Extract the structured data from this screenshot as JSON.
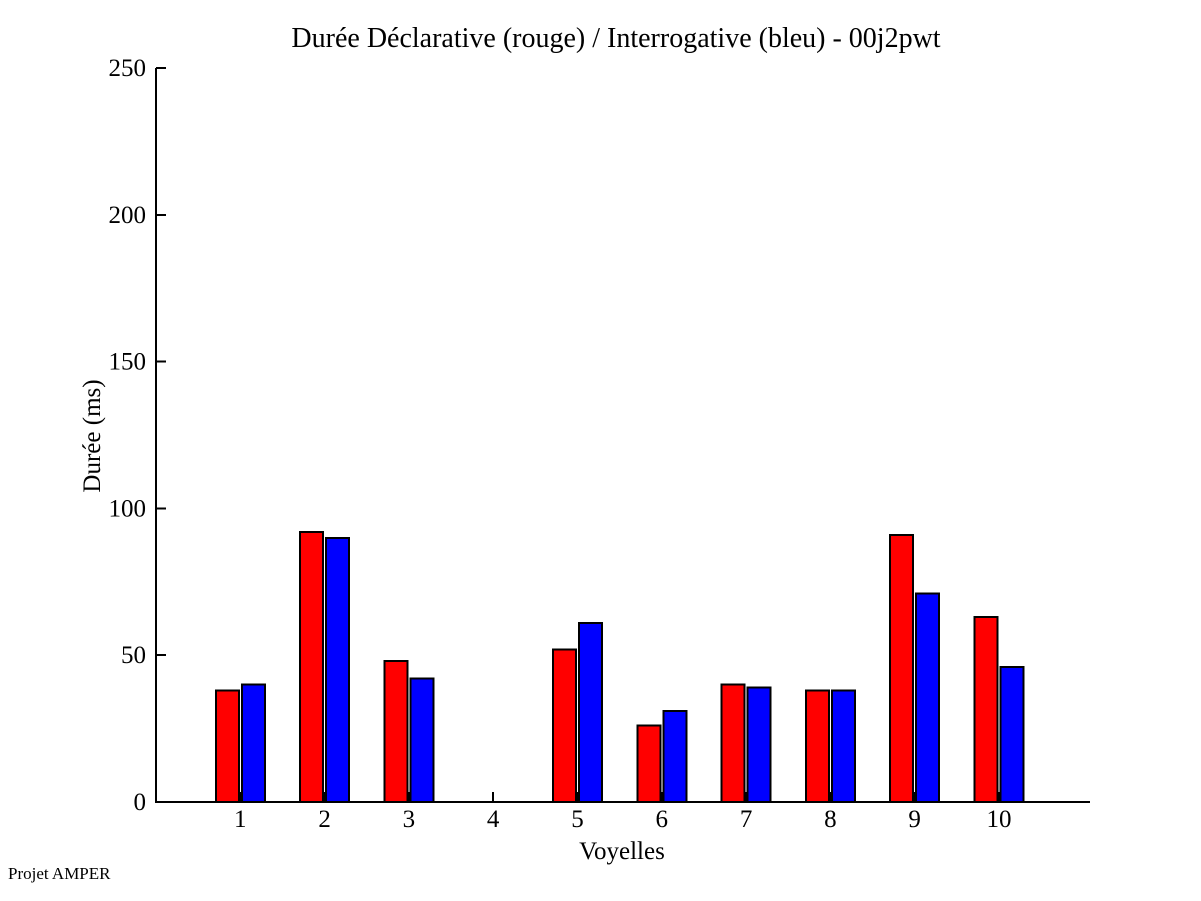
{
  "window": {
    "background": "#ffffff"
  },
  "chart_data": {
    "type": "bar",
    "title": "Durée Déclarative (rouge) / Interrogative (bleu) - 00j2pwt",
    "xlabel": "Voyelles",
    "ylabel": "Durée (ms)",
    "categories": [
      "1",
      "2",
      "3",
      "4",
      "5",
      "6",
      "7",
      "8",
      "9",
      "10"
    ],
    "series": [
      {
        "name": "Déclarative",
        "color": "#ff0000",
        "values": [
          38,
          92,
          48,
          0,
          52,
          26,
          40,
          38,
          91,
          63
        ]
      },
      {
        "name": "Interrogative",
        "color": "#0000ff",
        "values": [
          40,
          90,
          42,
          0,
          61,
          31,
          39,
          38,
          71,
          46
        ]
      }
    ],
    "ylim": [
      0,
      250
    ],
    "yticks": [
      0,
      50,
      100,
      150,
      200,
      250
    ],
    "grid": false,
    "legend_position": "none",
    "bar_edge_color": "#000000",
    "axis_color": "#000000"
  },
  "annotations": {
    "footer": "Projet AMPER"
  }
}
